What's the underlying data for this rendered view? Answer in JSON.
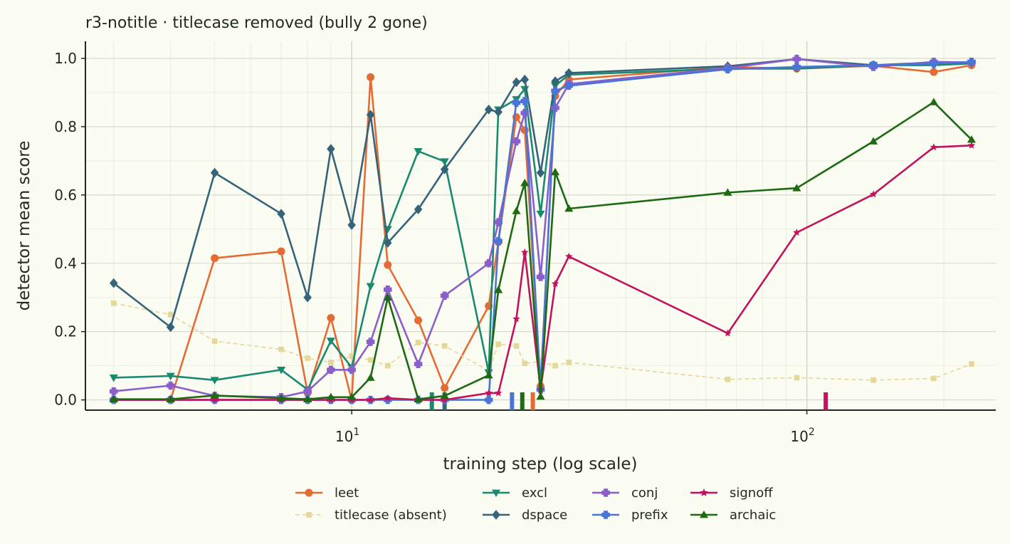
{
  "chart_data": {
    "type": "line",
    "title": "r3-notitle · titlecase removed (bully 2 gone)",
    "xlabel": "training step (log scale)",
    "ylabel": "detector mean score",
    "xscale": "log",
    "xlim": [
      2.6,
      260
    ],
    "ylim": [
      -0.03,
      1.05
    ],
    "xticks": [
      {
        "value": 10,
        "base": "10",
        "exp": "1"
      },
      {
        "value": 100,
        "base": "10",
        "exp": "2"
      }
    ],
    "yticks": [
      "0.0",
      "0.2",
      "0.4",
      "0.6",
      "0.8",
      "1.0"
    ],
    "grid": true,
    "legend_position": "bottom",
    "series": [
      {
        "name": "leet",
        "color": "#e56b35",
        "marker": "circle",
        "style": "solid",
        "x": [
          3,
          4,
          5,
          7,
          8,
          9,
          10,
          11,
          12,
          14,
          16,
          20,
          21,
          23,
          24,
          26,
          28,
          30,
          67,
          95,
          140,
          190,
          230
        ],
        "y": [
          0.0,
          0.0,
          0.415,
          0.435,
          0.02,
          0.24,
          0.0,
          0.945,
          0.395,
          0.233,
          0.035,
          0.275,
          0.462,
          0.828,
          0.79,
          0.04,
          0.89,
          0.938,
          0.975,
          0.97,
          0.978,
          0.96,
          0.98
        ]
      },
      {
        "name": "titlecase (absent)",
        "color": "#e5d699",
        "marker": "square",
        "style": "dashed",
        "x": [
          3,
          4,
          5,
          7,
          8,
          9,
          10,
          11,
          12,
          14,
          16,
          20,
          21,
          23,
          24,
          26,
          28,
          30,
          67,
          95,
          140,
          190,
          230
        ],
        "y": [
          0.283,
          0.25,
          0.172,
          0.148,
          0.122,
          0.11,
          0.128,
          0.117,
          0.1,
          0.168,
          0.158,
          0.085,
          0.163,
          0.158,
          0.107,
          0.112,
          0.1,
          0.11,
          0.06,
          0.065,
          0.058,
          0.063,
          0.105
        ]
      },
      {
        "name": "excl",
        "color": "#1a8a6e",
        "marker": "triangle-down",
        "style": "solid",
        "x": [
          3,
          4,
          5,
          7,
          8,
          9,
          10,
          11,
          12,
          14,
          16,
          20,
          21,
          23,
          24,
          26,
          28,
          30,
          67,
          95,
          140,
          190,
          230
        ],
        "y": [
          0.065,
          0.07,
          0.058,
          0.088,
          0.03,
          0.173,
          0.095,
          0.333,
          0.5,
          0.728,
          0.698,
          0.08,
          0.85,
          0.88,
          0.91,
          0.545,
          0.92,
          0.952,
          0.97,
          0.97,
          0.98,
          0.98,
          0.985
        ]
      },
      {
        "name": "dspace",
        "color": "#35647a",
        "marker": "diamond",
        "style": "solid",
        "x": [
          3,
          4,
          5,
          7,
          8,
          9,
          10,
          11,
          12,
          14,
          16,
          20,
          21,
          23,
          24,
          26,
          28,
          30,
          67,
          95,
          140,
          190,
          230
        ],
        "y": [
          0.342,
          0.213,
          0.665,
          0.545,
          0.3,
          0.735,
          0.512,
          0.835,
          0.46,
          0.558,
          0.675,
          0.85,
          0.843,
          0.93,
          0.938,
          0.665,
          0.933,
          0.957,
          0.977,
          0.998,
          0.98,
          0.988,
          0.988
        ]
      },
      {
        "name": "conj",
        "color": "#8a5fcc",
        "marker": "plus",
        "style": "solid",
        "x": [
          3,
          4,
          5,
          7,
          8,
          9,
          10,
          11,
          12,
          14,
          16,
          20,
          21,
          23,
          24,
          26,
          28,
          30,
          67,
          95,
          140,
          190,
          230
        ],
        "y": [
          0.025,
          0.042,
          0.012,
          0.008,
          0.025,
          0.088,
          0.088,
          0.17,
          0.323,
          0.105,
          0.305,
          0.4,
          0.52,
          0.757,
          0.84,
          0.36,
          0.855,
          0.925,
          0.972,
          0.998,
          0.975,
          0.99,
          0.988
        ]
      },
      {
        "name": "prefix",
        "color": "#4a75d6",
        "marker": "plus",
        "style": "solid",
        "x": [
          3,
          4,
          5,
          7,
          8,
          9,
          10,
          11,
          12,
          14,
          16,
          20,
          21,
          23,
          24,
          26,
          28,
          30,
          67,
          95,
          140,
          190,
          230
        ],
        "y": [
          0.0,
          0.0,
          0.0,
          0.0,
          0.0,
          0.0,
          0.0,
          0.0,
          0.0,
          0.0,
          0.0,
          0.0,
          0.465,
          0.87,
          0.875,
          0.03,
          0.905,
          0.92,
          0.968,
          0.975,
          0.98,
          0.985,
          0.99
        ]
      },
      {
        "name": "signoff",
        "color": "#c4125c",
        "marker": "star",
        "style": "solid",
        "x": [
          3,
          4,
          5,
          7,
          8,
          9,
          10,
          11,
          12,
          14,
          16,
          20,
          21,
          23,
          24,
          26,
          28,
          30,
          67,
          95,
          140,
          190,
          230
        ],
        "y": [
          0.0,
          0.0,
          0.0,
          0.0,
          0.0,
          0.0,
          0.0,
          0.0,
          0.005,
          0.0,
          0.0,
          0.02,
          0.02,
          0.237,
          0.432,
          0.03,
          0.34,
          0.42,
          0.195,
          0.49,
          0.602,
          0.74,
          0.745
        ]
      },
      {
        "name": "archaic",
        "color": "#1e6a12",
        "marker": "triangle-up",
        "style": "solid",
        "x": [
          3,
          4,
          5,
          7,
          8,
          9,
          10,
          11,
          12,
          14,
          16,
          20,
          21,
          23,
          24,
          26,
          28,
          30,
          67,
          95,
          140,
          190,
          230
        ],
        "y": [
          0.002,
          0.002,
          0.013,
          0.005,
          0.002,
          0.008,
          0.008,
          0.065,
          0.3,
          0.002,
          0.012,
          0.072,
          0.322,
          0.553,
          0.635,
          0.01,
          0.667,
          0.56,
          0.607,
          0.62,
          0.757,
          0.872,
          0.762
        ]
      }
    ],
    "rug": [
      {
        "x": 15,
        "color": "#1a8a6e"
      },
      {
        "x": 16,
        "color": "#35647a"
      },
      {
        "x": 22.5,
        "color": "#4a75d6"
      },
      {
        "x": 23.7,
        "color": "#1e6a12"
      },
      {
        "x": 25,
        "color": "#e56b35"
      },
      {
        "x": 110,
        "color": "#c4125c"
      }
    ]
  }
}
